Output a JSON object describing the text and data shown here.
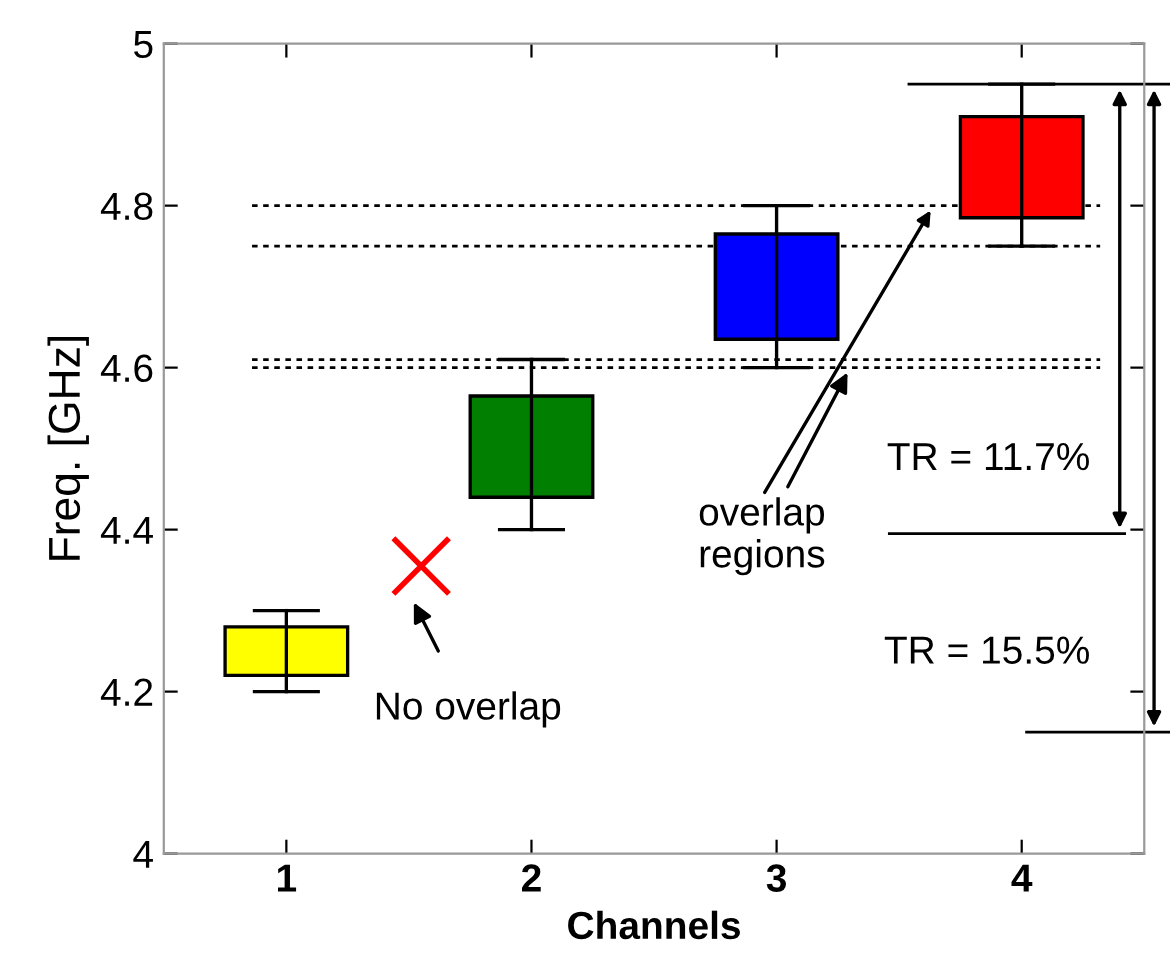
{
  "chart_data": {
    "type": "box",
    "xlabel": "Channels",
    "ylabel": "Freq. [GHz]",
    "x": [
      1,
      2,
      3,
      4
    ],
    "xlim": [
      0.5,
      4.5
    ],
    "xticks": [
      1,
      2,
      3,
      4
    ],
    "ylim": [
      4,
      5
    ],
    "yticks": [
      4,
      4.2,
      4.4,
      4.6,
      4.8,
      {
        "value": 5,
        "label": "5"
      }
    ],
    "colors": [
      "#ffff00",
      "#007f00",
      "#0000ff",
      "#ff0000"
    ],
    "boxes": [
      {
        "low": 4.2,
        "q1": 4.22,
        "q3": 4.28,
        "high": 4.3
      },
      {
        "low": 4.4,
        "q1": 4.44,
        "q3": 4.565,
        "high": 4.61
      },
      {
        "low": 4.6,
        "q1": 4.635,
        "q3": 4.765,
        "high": 4.8
      },
      {
        "low": 4.75,
        "q1": 4.785,
        "q3": 4.91,
        "high": 4.95
      }
    ],
    "series": [
      {
        "type": "scatter",
        "x": [
          1.55
        ],
        "values": [
          4.355
        ],
        "color": "#ff0000",
        "marker": "cross"
      }
    ],
    "ref_lines": [
      {
        "axis": "y",
        "value": 4.8,
        "line_style": "dotted"
      },
      {
        "axis": "y",
        "value": 4.75,
        "line_style": "dotted"
      },
      {
        "axis": "y",
        "value": 4.61,
        "line_style": "dotted"
      },
      {
        "axis": "y",
        "value": 4.6,
        "line_style": "dotted"
      }
    ],
    "annotations": [
      "No overlap",
      {
        "text": "overlap regions",
        "x": 3.3,
        "y": 4.6
      },
      "TR = 11.7%",
      "TR = 15.5%"
    ],
    "grid": false,
    "legend": false
  }
}
